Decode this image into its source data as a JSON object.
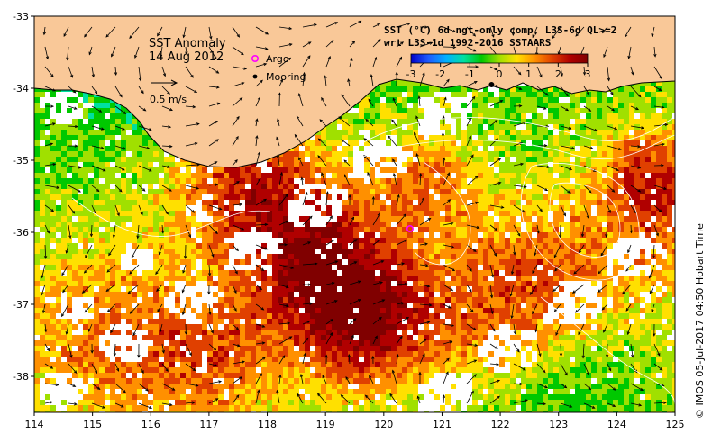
{
  "map": {
    "title": "SST Anomaly",
    "date": "14 Aug 2012",
    "header_line1": "SST (°C) 6d ngt-only comp, L3S-6d QL>=2",
    "header_line2": "wrt L3S-1d 1992-2016 SSTAARS",
    "credit": "© IMOS 05-Jul-2017 04:50 Hobart Time",
    "vector_scale_label": "0.5 m/s",
    "legend": [
      {
        "label": "Argo",
        "color": "#ff00ff",
        "symbol": "circle-open"
      },
      {
        "label": "Mooring",
        "color": "#000000",
        "symbol": "dot"
      }
    ],
    "colorbar": {
      "min": -3,
      "max": 3,
      "ticks": [
        "-3",
        "-2",
        "-1",
        "0",
        "1",
        "2",
        "3"
      ],
      "colors": [
        "#0000c8",
        "#1e5cff",
        "#00b0ff",
        "#00e0a0",
        "#00c800",
        "#a0e000",
        "#ffe000",
        "#ff9000",
        "#e04000",
        "#b00000",
        "#800000"
      ]
    },
    "lon_ticks": [
      "114",
      "115",
      "116",
      "117",
      "118",
      "119",
      "120",
      "121",
      "122",
      "123",
      "124",
      "125"
    ],
    "lat_ticks": [
      "-33",
      "-34",
      "-35",
      "-36",
      "-37",
      "-38"
    ],
    "xlim": [
      114,
      125
    ],
    "ylim": [
      -38.5,
      -33
    ],
    "land_color": "#f9c898",
    "argo_point": {
      "lon": 120.45,
      "lat": -35.95
    },
    "mooring_point": {
      "lon": 121.85,
      "lat": -33.95
    }
  }
}
